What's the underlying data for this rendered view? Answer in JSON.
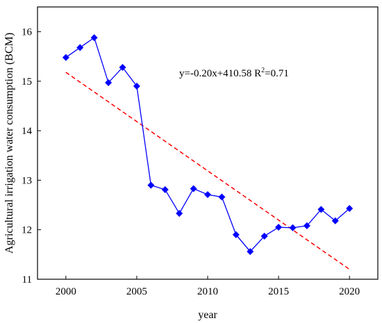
{
  "chart_data": {
    "type": "line",
    "title": "",
    "xlabel": "year",
    "ylabel": "Agricultural irrigation water consumption (BCM)",
    "xlim": [
      1998,
      2022
    ],
    "ylim": [
      11,
      16.5
    ],
    "x_ticks": [
      "2000",
      "2005",
      "2010",
      "2015",
      "2020"
    ],
    "y_ticks": [
      "11",
      "12",
      "13",
      "14",
      "15",
      "16"
    ],
    "grid": false,
    "legend": "none",
    "series": [
      {
        "color": "#0000ff",
        "marker": "diamond",
        "x": [
          2000,
          2001,
          2002,
          2003,
          2004,
          2005,
          2006,
          2007,
          2008,
          2009,
          2010,
          2011,
          2012,
          2013,
          2014,
          2015,
          2016,
          2017,
          2018,
          2019,
          2020
        ],
        "y": [
          15.48,
          15.68,
          15.88,
          14.97,
          15.28,
          14.9,
          12.9,
          12.81,
          12.33,
          12.83,
          12.71,
          12.66,
          11.9,
          11.56,
          11.87,
          12.05,
          12.04,
          12.08,
          12.41,
          12.18,
          12.43
        ]
      }
    ],
    "trendline": {
      "color": "#ff0000",
      "style": "dashed",
      "x": [
        2000,
        2020
      ],
      "y": [
        15.18,
        11.2
      ]
    },
    "annotation": {
      "prefix": "y=-0.20x+410.58 R",
      "sup": "2",
      "suffix": "=0.71"
    }
  }
}
